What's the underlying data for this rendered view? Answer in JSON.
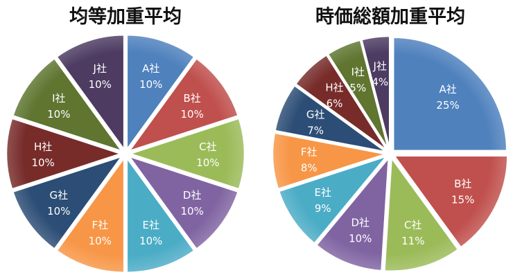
{
  "chart_data": [
    {
      "type": "pie",
      "title": "均等加重平均",
      "categories": [
        "A社",
        "B社",
        "C社",
        "D社",
        "E社",
        "F社",
        "G社",
        "H社",
        "I社",
        "J社"
      ],
      "values": [
        10,
        10,
        10,
        10,
        10,
        10,
        10,
        10,
        10,
        10
      ],
      "labels": [
        "10%",
        "10%",
        "10%",
        "10%",
        "10%",
        "10%",
        "10%",
        "10%",
        "10%",
        "10%"
      ],
      "colors": [
        "#4F81BD",
        "#C0504D",
        "#9BBB59",
        "#8064A2",
        "#4BACC6",
        "#F79646",
        "#2C4D75",
        "#772C2A",
        "#5F7530",
        "#4D3B62"
      ],
      "exploded": true
    },
    {
      "type": "pie",
      "title": "時価総額加重平均",
      "categories": [
        "A社",
        "B社",
        "C社",
        "D社",
        "E社",
        "F社",
        "G社",
        "H社",
        "I社",
        "J社"
      ],
      "values": [
        25,
        15,
        11,
        10,
        9,
        8,
        7,
        6,
        5,
        4
      ],
      "labels": [
        "25%",
        "15%",
        "11%",
        "10%",
        "9%",
        "8%",
        "7%",
        "6%",
        "5%",
        "4%"
      ],
      "colors": [
        "#4F81BD",
        "#C0504D",
        "#9BBB59",
        "#8064A2",
        "#4BACC6",
        "#F79646",
        "#2C4D75",
        "#772C2A",
        "#5F7530",
        "#4D3B62"
      ],
      "exploded": true
    }
  ]
}
